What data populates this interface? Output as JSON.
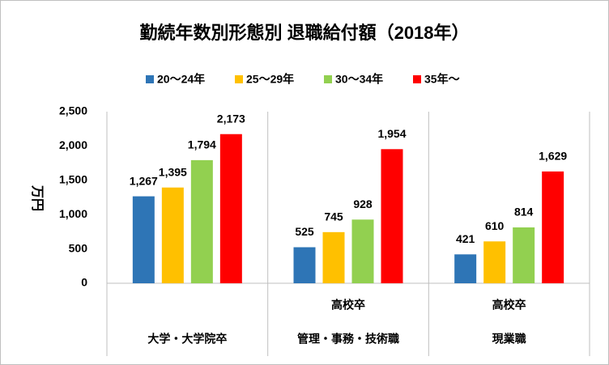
{
  "chart_data": {
    "type": "bar",
    "title": "勤続年数別形態別 退職給付額（2018年）",
    "y_axis_label": "万円",
    "categories": [
      "大学・大学院卒",
      "管理・事務・技術職",
      "現業職"
    ],
    "category_groups": [
      null,
      "高校卒",
      "高校卒"
    ],
    "series": [
      {
        "name": "20～24年",
        "color": "#2e75b6",
        "values": [
          1267,
          525,
          421
        ],
        "value_labels": [
          "1,267",
          "525",
          "421"
        ]
      },
      {
        "name": "25～29年",
        "color": "#ffc000",
        "values": [
          1395,
          745,
          610
        ],
        "value_labels": [
          "1,395",
          "745",
          "610"
        ]
      },
      {
        "name": "30～34年",
        "color": "#92d050",
        "values": [
          1794,
          928,
          814
        ],
        "value_labels": [
          "1,794",
          "928",
          "814"
        ]
      },
      {
        "name": "35年～",
        "color": "#ff0000",
        "values": [
          2173,
          1954,
          1629
        ],
        "value_labels": [
          "2,173",
          "1,954",
          "1,629"
        ]
      }
    ],
    "ylim": [
      0,
      2500
    ],
    "yticks": [
      0,
      500,
      {
        "value": 1000,
        "label": "1,000"
      },
      {
        "value": 1500,
        "label": "1,500"
      },
      {
        "value": 2000,
        "label": "2,000"
      },
      {
        "value": 2500,
        "label": "2,500"
      }
    ],
    "grid": false,
    "legend": "top"
  }
}
